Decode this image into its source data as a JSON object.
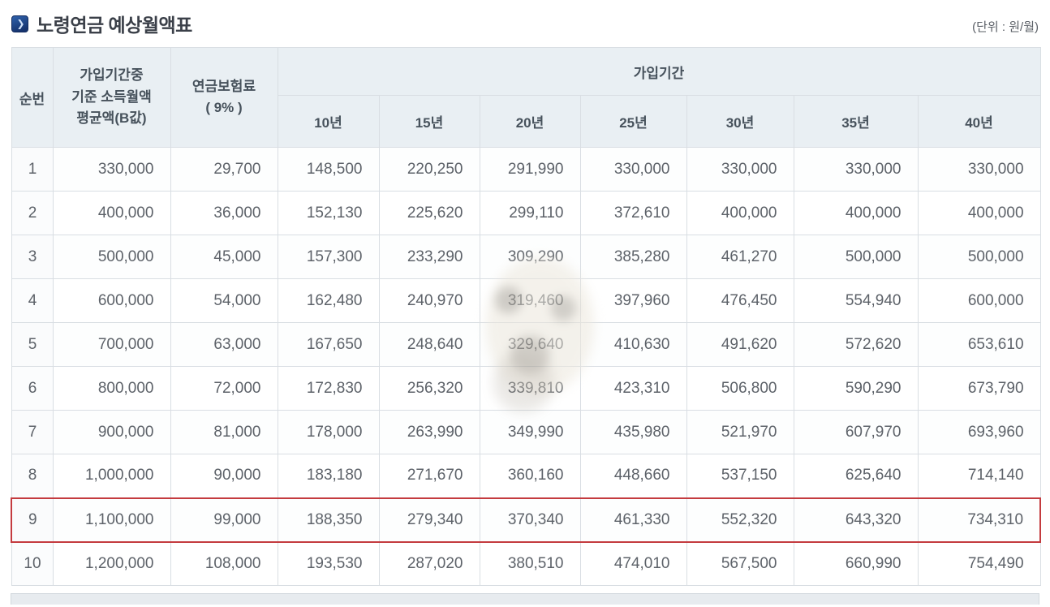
{
  "page": {
    "title": "노령연금 예상월액표",
    "unit_label": "(단위 : 원/월)",
    "accent_color": "#1d4f9e"
  },
  "table": {
    "highlight_color": "#c43b3f",
    "headers": {
      "seq": "순번",
      "income": "가입기간중\n기준 소득월액\n평균액(B값)",
      "premium": "연금보험료\n( 9% )",
      "period_group": "가입기간",
      "periods": [
        "10년",
        "15년",
        "20년",
        "25년",
        "30년",
        "35년",
        "40년"
      ]
    },
    "rows": [
      {
        "no": "1",
        "income": "330,000",
        "premium": "29,700",
        "values": [
          "148,500",
          "220,250",
          "291,990",
          "330,000",
          "330,000",
          "330,000",
          "330,000"
        ],
        "highlighted": false
      },
      {
        "no": "2",
        "income": "400,000",
        "premium": "36,000",
        "values": [
          "152,130",
          "225,620",
          "299,110",
          "372,610",
          "400,000",
          "400,000",
          "400,000"
        ],
        "highlighted": false
      },
      {
        "no": "3",
        "income": "500,000",
        "premium": "45,000",
        "values": [
          "157,300",
          "233,290",
          "309,290",
          "385,280",
          "461,270",
          "500,000",
          "500,000"
        ],
        "highlighted": false
      },
      {
        "no": "4",
        "income": "600,000",
        "premium": "54,000",
        "values": [
          "162,480",
          "240,970",
          "319,460",
          "397,960",
          "476,450",
          "554,940",
          "600,000"
        ],
        "highlighted": false
      },
      {
        "no": "5",
        "income": "700,000",
        "premium": "63,000",
        "values": [
          "167,650",
          "248,640",
          "329,640",
          "410,630",
          "491,620",
          "572,620",
          "653,610"
        ],
        "highlighted": false
      },
      {
        "no": "6",
        "income": "800,000",
        "premium": "72,000",
        "values": [
          "172,830",
          "256,320",
          "339,810",
          "423,310",
          "506,800",
          "590,290",
          "673,790"
        ],
        "highlighted": false
      },
      {
        "no": "7",
        "income": "900,000",
        "premium": "81,000",
        "values": [
          "178,000",
          "263,990",
          "349,990",
          "435,980",
          "521,970",
          "607,970",
          "693,960"
        ],
        "highlighted": false
      },
      {
        "no": "8",
        "income": "1,000,000",
        "premium": "90,000",
        "values": [
          "183,180",
          "271,670",
          "360,160",
          "448,660",
          "537,150",
          "625,640",
          "714,140"
        ],
        "highlighted": false
      },
      {
        "no": "9",
        "income": "1,100,000",
        "premium": "99,000",
        "values": [
          "188,350",
          "279,340",
          "370,340",
          "461,330",
          "552,320",
          "643,320",
          "734,310"
        ],
        "highlighted": true
      },
      {
        "no": "10",
        "income": "1,200,000",
        "premium": "108,000",
        "values": [
          "193,530",
          "287,020",
          "380,510",
          "474,010",
          "567,500",
          "660,990",
          "754,490"
        ],
        "highlighted": false
      }
    ]
  }
}
